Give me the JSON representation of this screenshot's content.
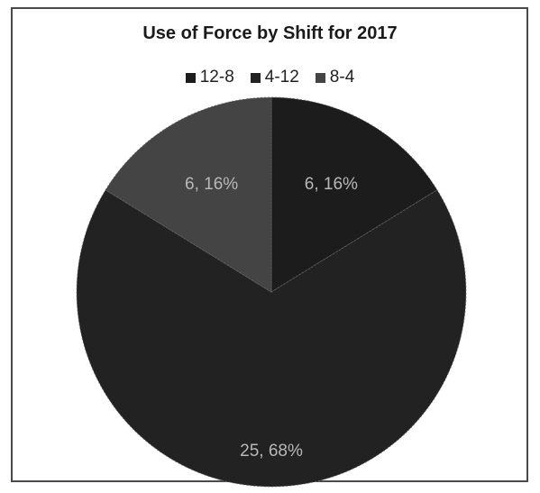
{
  "chart_data": {
    "type": "pie",
    "title": "Use of Force by Shift for 2017",
    "categories": [
      "12-8",
      "4-12",
      "8-4"
    ],
    "values": [
      6,
      25,
      6
    ],
    "percent_labels": [
      "16%",
      "68%",
      "16%"
    ],
    "data_labels": [
      "6, 16%",
      "25, 68%",
      "6, 16%"
    ],
    "colors": [
      "#1c1c1c",
      "#222222",
      "#444444"
    ],
    "legend_placement": "top",
    "start_angle_deg": 0,
    "direction": "clockwise"
  }
}
